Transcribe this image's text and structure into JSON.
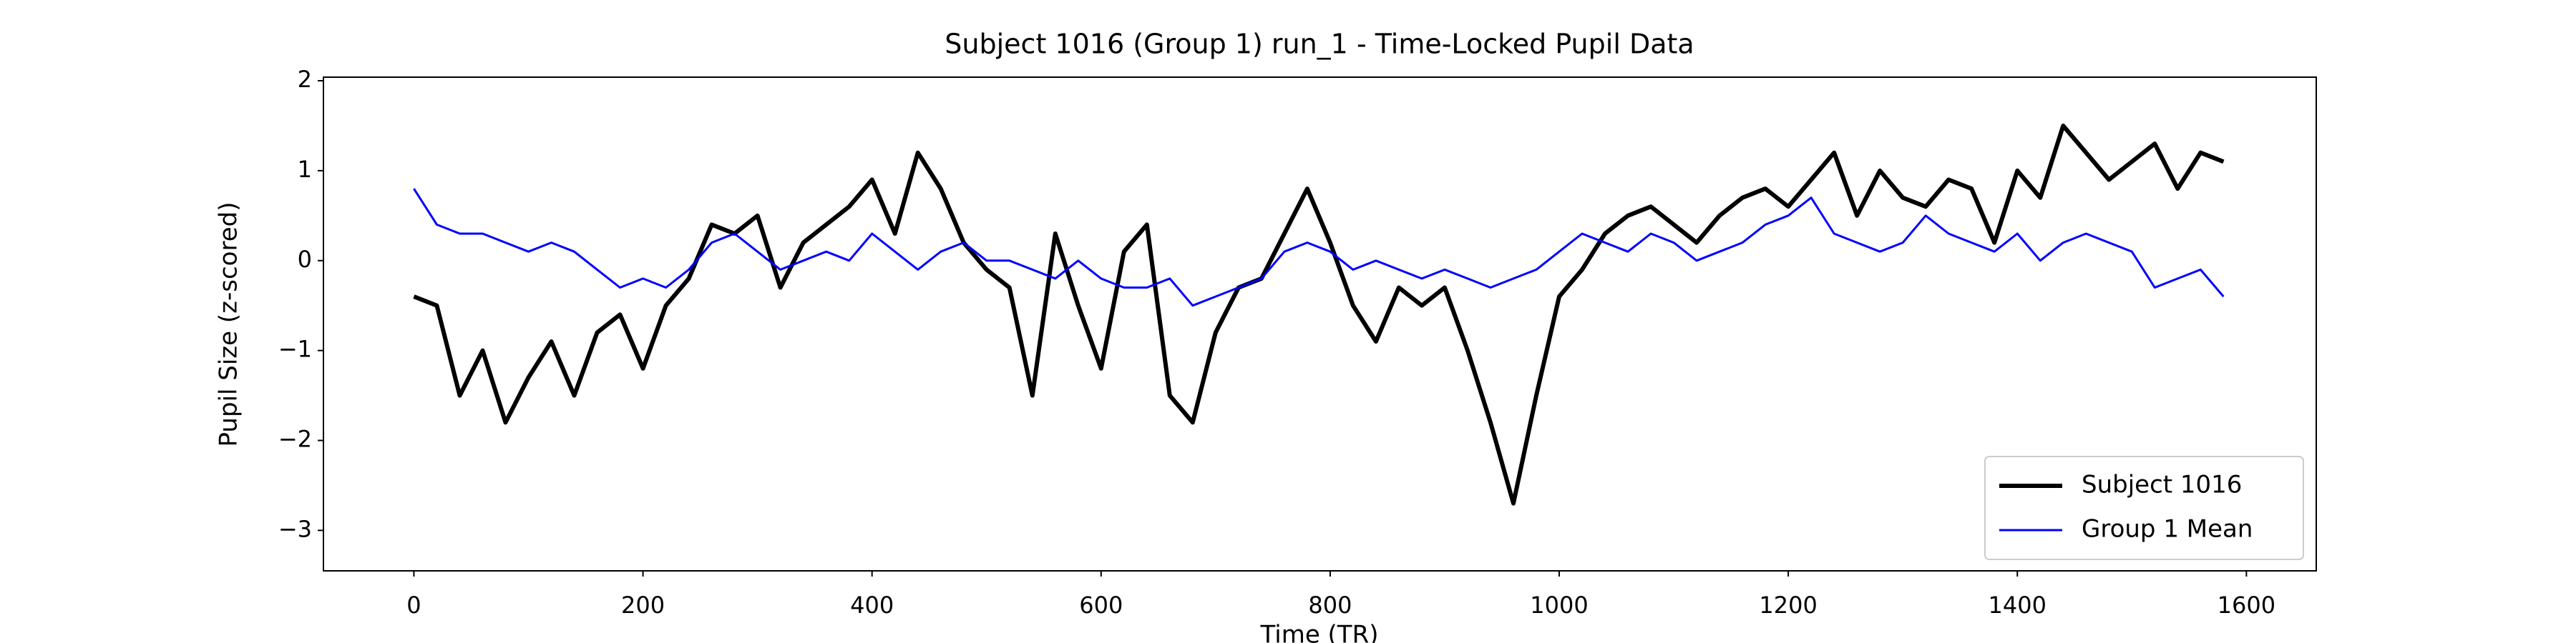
{
  "chart_data": {
    "type": "line",
    "title": "Subject 1016 (Group 1) run_1 - Time-Locked Pupil Data",
    "xlabel": "Time (TR)",
    "ylabel": "Pupil Size (z-scored)",
    "x": [
      0,
      20,
      40,
      60,
      80,
      100,
      120,
      140,
      160,
      180,
      200,
      220,
      240,
      260,
      280,
      300,
      320,
      340,
      360,
      380,
      400,
      420,
      440,
      460,
      480,
      500,
      520,
      540,
      560,
      580,
      600,
      620,
      640,
      660,
      680,
      700,
      720,
      740,
      760,
      780,
      800,
      820,
      840,
      860,
      880,
      900,
      920,
      940,
      960,
      980,
      1000,
      1020,
      1040,
      1060,
      1080,
      1100,
      1120,
      1140,
      1160,
      1180,
      1200,
      1220,
      1240,
      1260,
      1280,
      1300,
      1320,
      1340,
      1360,
      1380,
      1400,
      1420,
      1440,
      1460,
      1480,
      1500,
      1520,
      1540,
      1560,
      1580
    ],
    "series": [
      {
        "name": "Subject 1016",
        "color": "#000000",
        "values": [
          -0.4,
          -0.5,
          -1.5,
          -1.0,
          -1.8,
          -1.3,
          -0.9,
          -1.5,
          -0.8,
          -0.6,
          -1.2,
          -0.5,
          -0.2,
          0.4,
          0.3,
          0.5,
          -0.3,
          0.2,
          0.4,
          0.6,
          0.9,
          0.3,
          1.2,
          0.8,
          0.2,
          -0.1,
          -0.3,
          -1.5,
          0.3,
          -0.5,
          -1.2,
          0.1,
          0.4,
          -1.5,
          -1.8,
          -0.8,
          -0.3,
          -0.2,
          0.3,
          0.8,
          0.2,
          -0.5,
          -0.9,
          -0.3,
          -0.5,
          -0.3,
          -1.0,
          -1.8,
          -2.7,
          -1.5,
          -0.4,
          -0.1,
          0.3,
          0.5,
          0.6,
          0.4,
          0.2,
          0.5,
          0.7,
          0.8,
          0.6,
          0.9,
          1.2,
          0.5,
          1.0,
          0.7,
          0.6,
          0.9,
          0.8,
          0.2,
          1.0,
          0.7,
          1.5,
          1.2,
          0.9,
          1.1,
          1.3,
          0.8,
          1.2,
          1.1
        ]
      },
      {
        "name": "Group 1 Mean",
        "color": "#0000ff",
        "values": [
          0.8,
          0.4,
          0.3,
          0.3,
          0.2,
          0.1,
          0.2,
          0.1,
          -0.1,
          -0.3,
          -0.2,
          -0.3,
          -0.1,
          0.2,
          0.3,
          0.1,
          -0.1,
          0.0,
          0.1,
          0.0,
          0.3,
          0.1,
          -0.1,
          0.1,
          0.2,
          0.0,
          0.0,
          -0.1,
          -0.2,
          0.0,
          -0.2,
          -0.3,
          -0.3,
          -0.2,
          -0.5,
          -0.4,
          -0.3,
          -0.2,
          0.1,
          0.2,
          0.1,
          -0.1,
          0.0,
          -0.1,
          -0.2,
          -0.1,
          -0.2,
          -0.3,
          -0.2,
          -0.1,
          0.1,
          0.3,
          0.2,
          0.1,
          0.3,
          0.2,
          0.0,
          0.1,
          0.2,
          0.4,
          0.5,
          0.7,
          0.3,
          0.2,
          0.1,
          0.2,
          0.5,
          0.3,
          0.2,
          0.1,
          0.3,
          0.0,
          0.2,
          0.3,
          0.2,
          0.1,
          -0.3,
          -0.2,
          -0.1,
          -0.4
        ]
      }
    ],
    "xlim": [
      -79,
      1661
    ],
    "ylim": [
      -3.45,
      2.04
    ],
    "xticks": [
      0,
      200,
      400,
      600,
      800,
      1000,
      1200,
      1400,
      1600
    ],
    "yticks": [
      {
        "value": -3,
        "label": "−3"
      },
      {
        "value": -2,
        "label": "−2"
      },
      {
        "value": -1,
        "label": "−1"
      },
      0,
      1,
      2
    ],
    "legend": "lower right"
  }
}
